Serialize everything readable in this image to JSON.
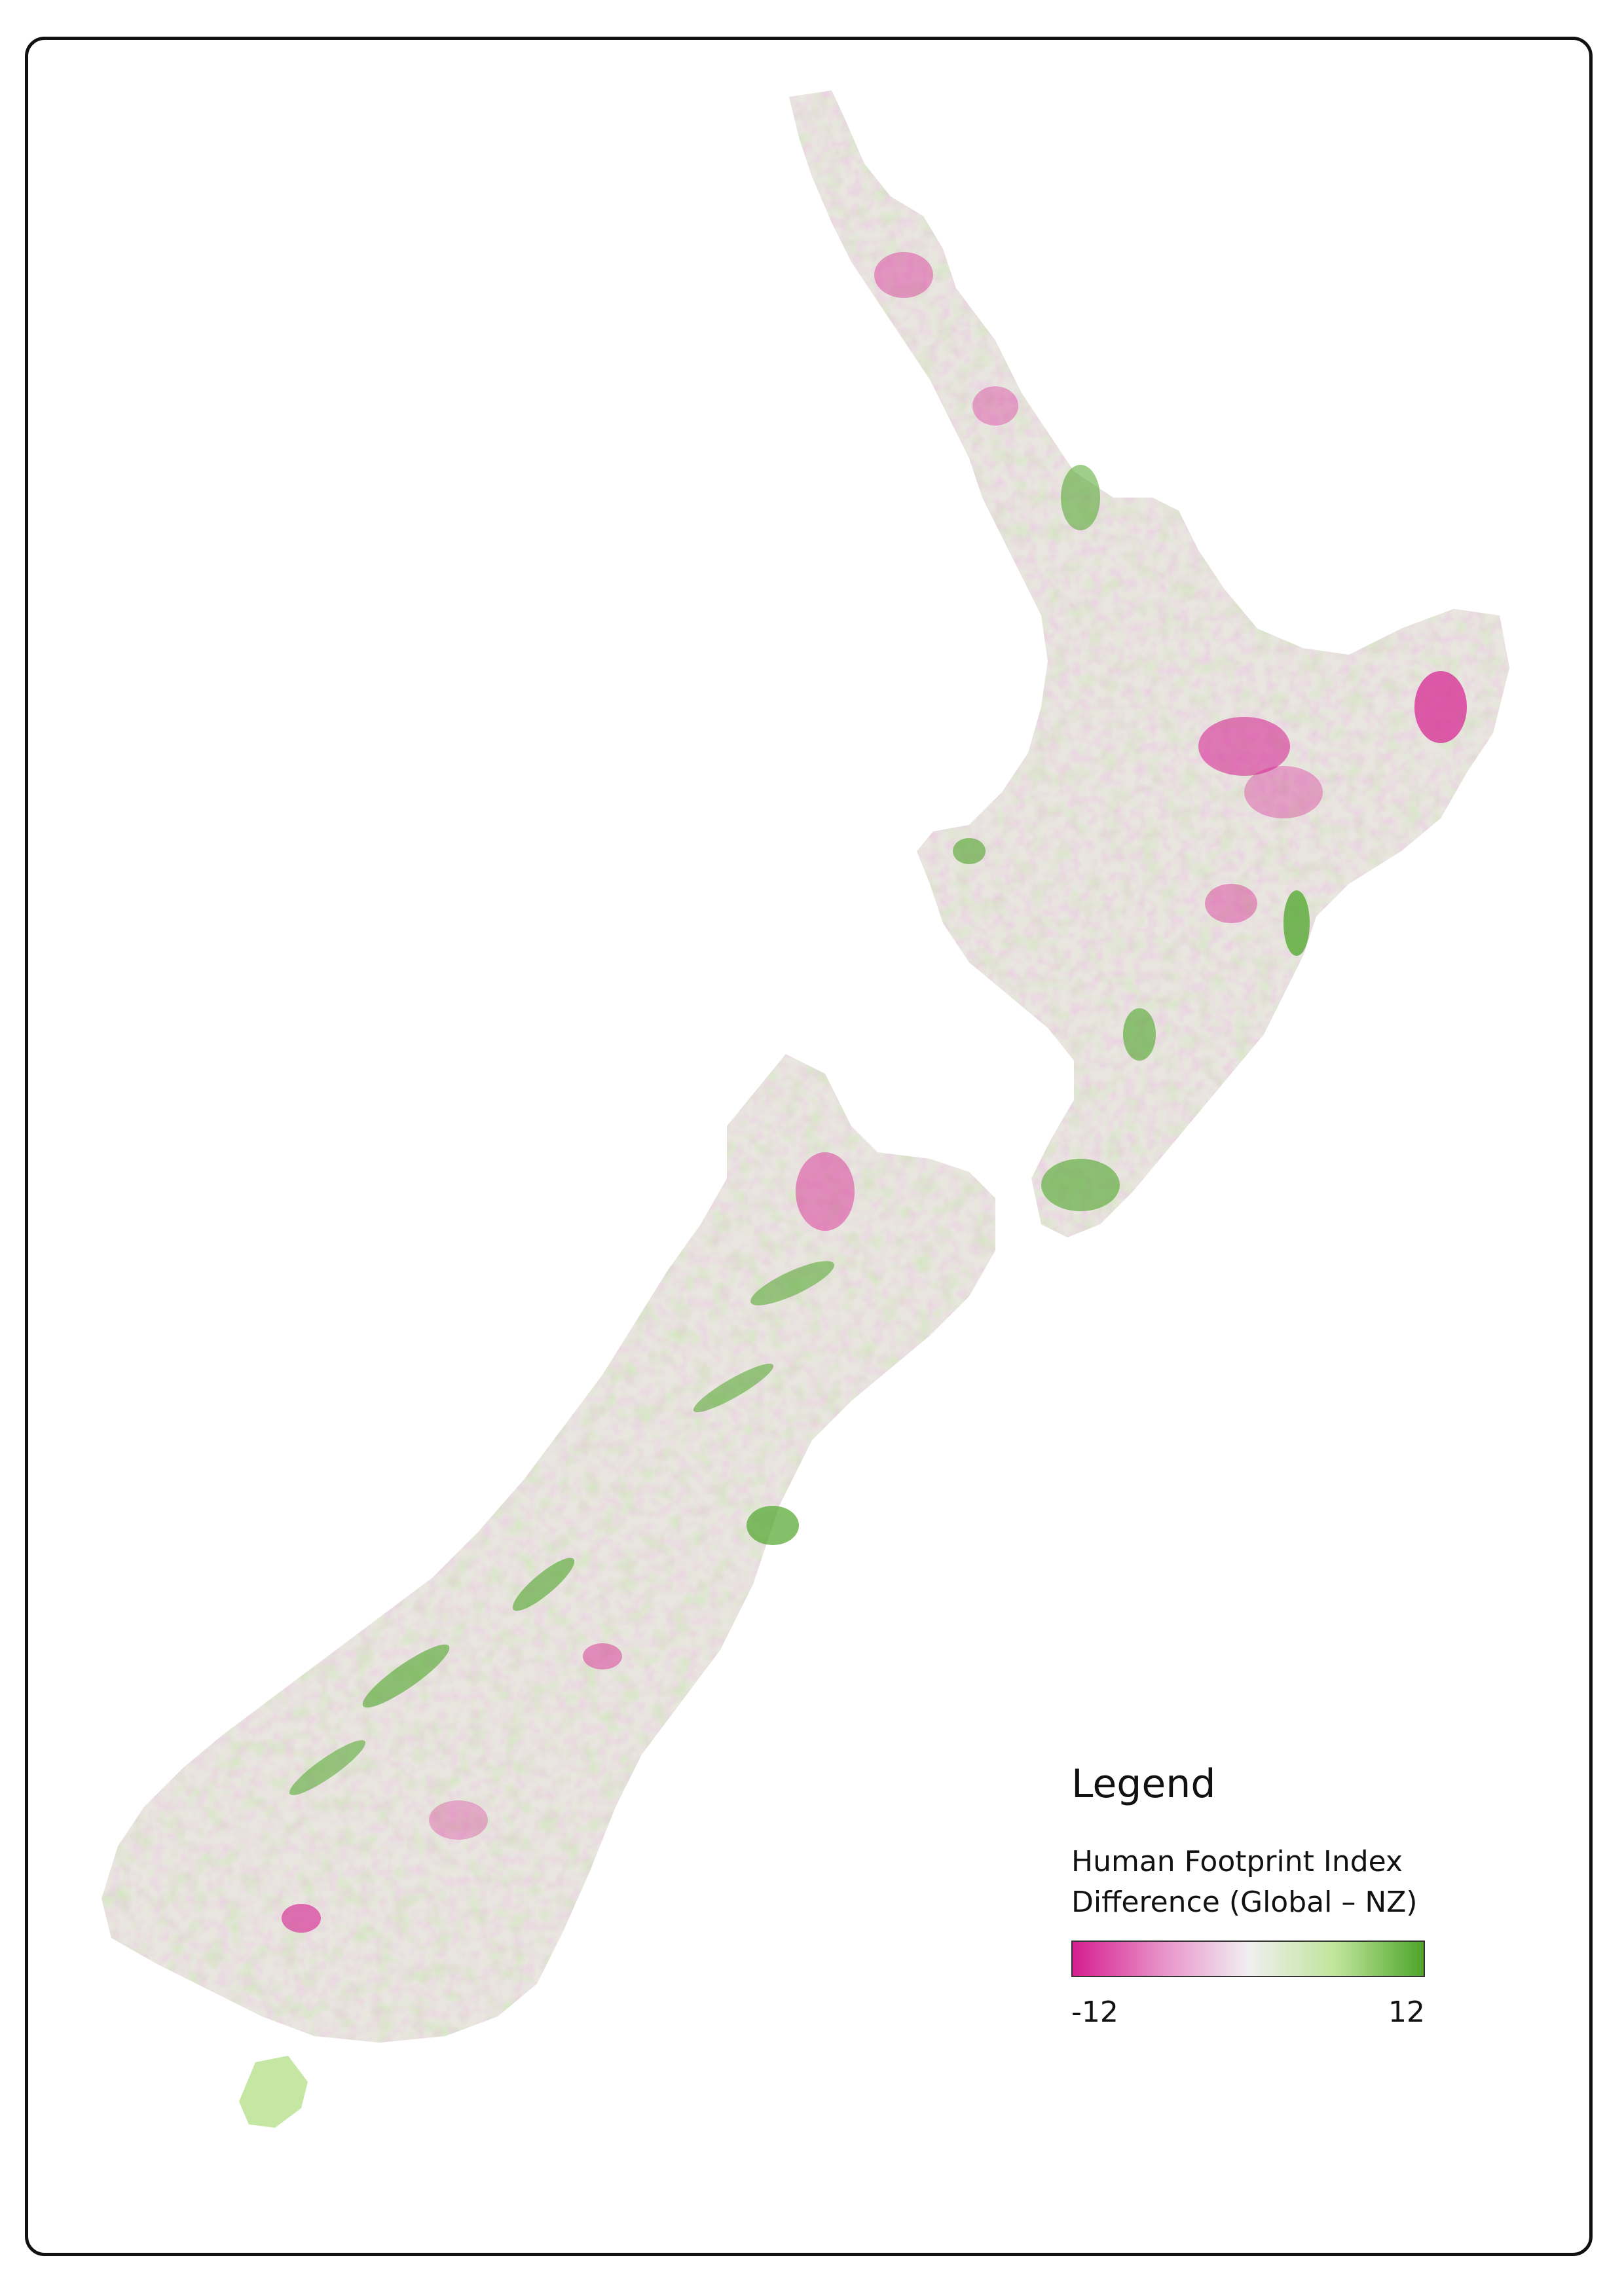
{
  "legend": {
    "title": "Legend",
    "subtitle_line1": "Human Footprint Index",
    "subtitle_line2": "Difference (Global – NZ)",
    "min_label": "-12",
    "max_label": "12",
    "ramp_colors": [
      "#d61e8f",
      "#e88fc8",
      "#f1eef0",
      "#bfe59a",
      "#4ea52a"
    ]
  },
  "colors": {
    "land_base": "#e8e6df",
    "negative_strong": "#d61e8f",
    "negative_light": "#ecaad6",
    "positive_light": "#c6e6a3",
    "positive_strong": "#4ea52a"
  }
}
